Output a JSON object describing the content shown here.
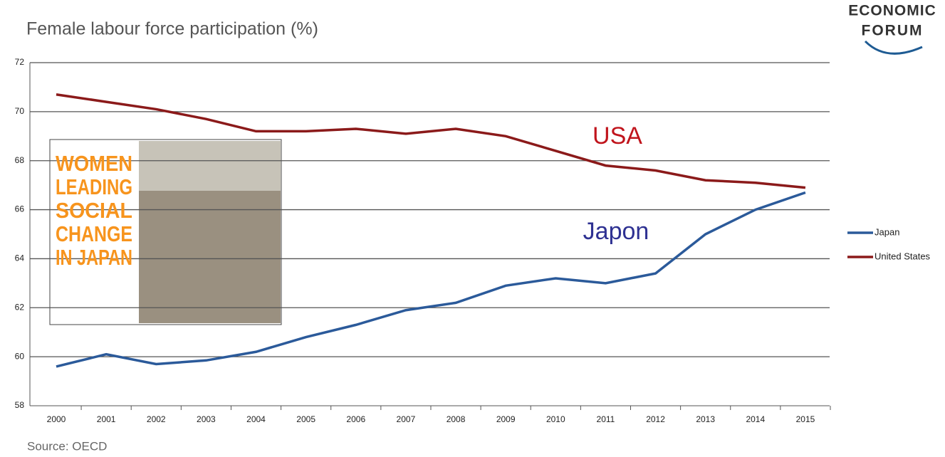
{
  "chart_data": {
    "type": "line",
    "title": "Female labour force participation (%)",
    "source": "Source: OECD",
    "logo": [
      "ECONOMIC",
      "FORUM"
    ],
    "inset_text": [
      "WOMEN",
      "LEADING",
      "SOCIAL",
      "CHANGE",
      "IN JAPAN"
    ],
    "categories": [
      "2000",
      "2001",
      "2002",
      "2003",
      "2004",
      "2005",
      "2006",
      "2007",
      "2008",
      "2009",
      "2010",
      "2011",
      "2012",
      "2013",
      "2014",
      "2015"
    ],
    "series": [
      {
        "name": "Japan",
        "color": "#2b5a9a",
        "values": [
          59.6,
          60.1,
          59.7,
          59.85,
          60.2,
          60.8,
          61.3,
          61.9,
          62.2,
          62.9,
          63.2,
          63.0,
          63.4,
          65.0,
          66.0,
          66.7
        ]
      },
      {
        "name": "United States",
        "color": "#8b1a1a",
        "values": [
          70.7,
          70.4,
          70.1,
          69.7,
          69.2,
          69.2,
          69.3,
          69.1,
          69.3,
          69.0,
          68.4,
          67.8,
          67.6,
          67.2,
          67.1,
          66.9
        ]
      }
    ],
    "annotations": [
      {
        "text": "USA",
        "color": "#c0141c"
      },
      {
        "text": "Japon",
        "color": "#2e3192"
      }
    ],
    "ylim": [
      58,
      72
    ],
    "yticks": [
      58,
      60,
      62,
      64,
      66,
      68,
      70,
      72
    ],
    "grid": true
  }
}
